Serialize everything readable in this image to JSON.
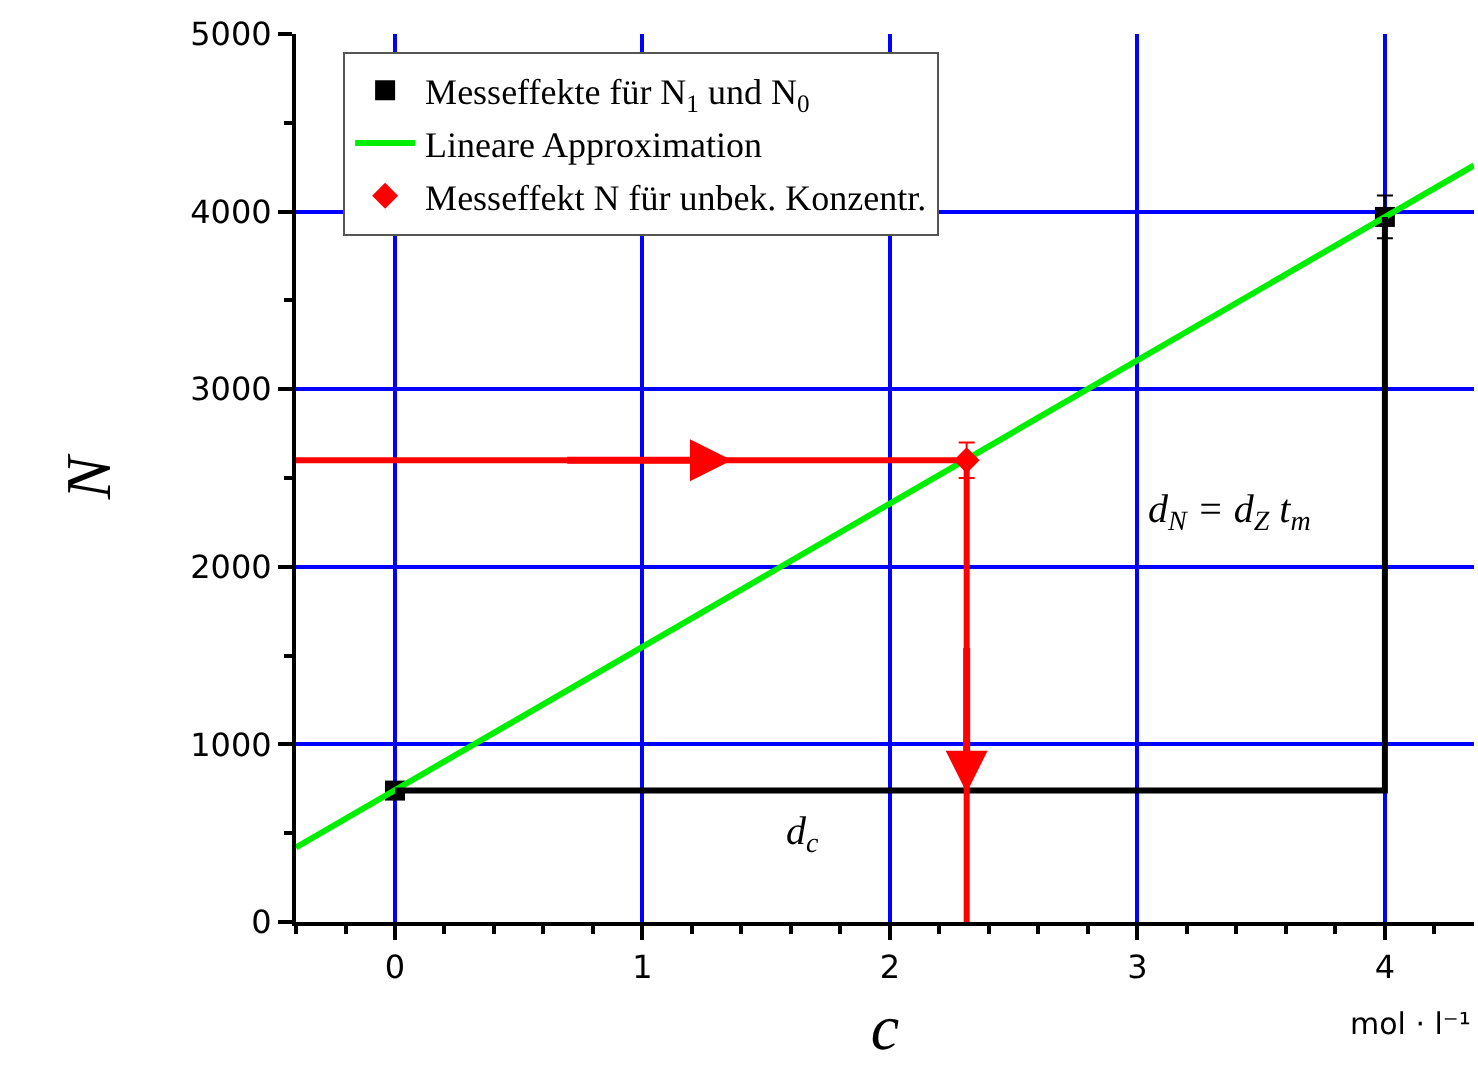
{
  "chart_data": {
    "type": "scatter",
    "xlabel": "c",
    "ylabel": "N",
    "xlim": [
      -0.4,
      4.36
    ],
    "ylim": [
      0,
      5000
    ],
    "xticks": [
      0,
      1,
      2,
      3,
      4
    ],
    "yticks": [
      0,
      1000,
      2000,
      3000,
      4000,
      5000
    ],
    "grid": true,
    "legend": "top left",
    "series": [
      {
        "name": "Messeffekte für N$_{1}$ und N$_{0}$",
        "marker": "square",
        "color": "#000000",
        "x": [
          0,
          4
        ],
        "values": [
          740,
          3970
        ],
        "errors": [
          null,
          120
        ]
      },
      {
        "name": "Lineare Approximation",
        "type": "line",
        "color": "#00ee00",
        "x": [
          -0.4,
          4.36
        ],
        "values": [
          420,
          4260
        ]
      },
      {
        "name": "Messeffekt N für unbek. Konzentr.",
        "marker": "diamond",
        "color": "#ff0000",
        "x": [
          2.31
        ],
        "values": [
          2600
        ],
        "errors": [
          100
        ]
      },
      {
        "type": "line",
        "color": "#000000",
        "x": [
          0,
          4,
          4
        ],
        "values": [
          740,
          740,
          3970
        ]
      },
      {
        "type": "line",
        "color": "#ff0000",
        "x": [
          -0.4,
          2.31,
          2.31
        ],
        "values": [
          2600,
          2600,
          0
        ]
      }
    ],
    "annotations": [
      "d$_{c}$",
      "d$_{N}$ = d$_{Z}$ t$_{m}$",
      "mol · l⁻¹"
    ]
  }
}
